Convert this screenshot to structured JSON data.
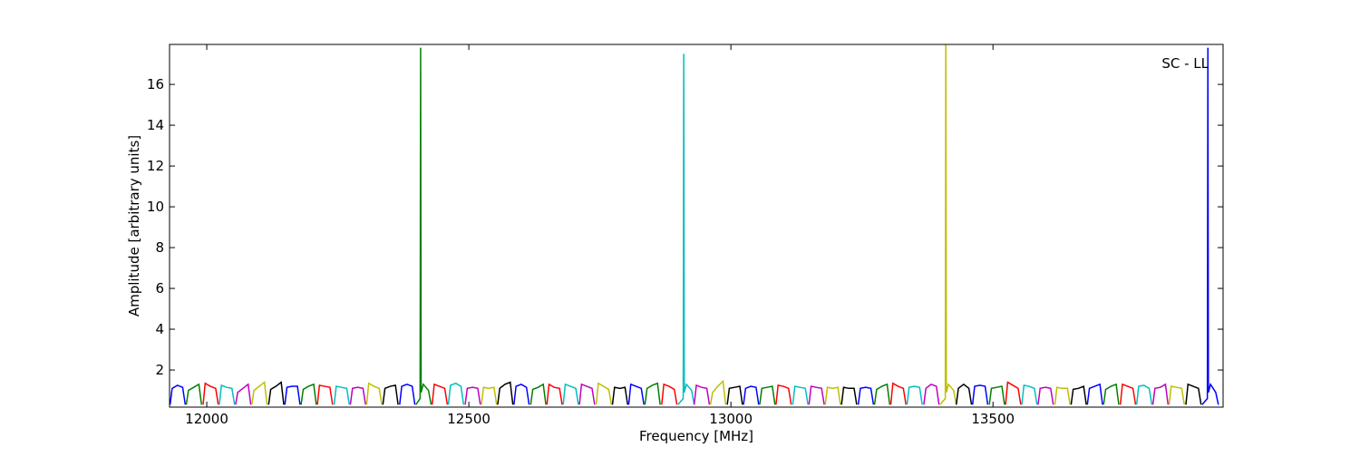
{
  "chart_data": {
    "type": "line",
    "x_label": "Frequency [MHz]",
    "y_label": "Amplitude [arbitrary units]",
    "annotation": "SC - LL",
    "xlim": [
      11929,
      13939
    ],
    "ylim": [
      0.18,
      17.96
    ],
    "xticks": [
      12000,
      12500,
      13000,
      13500
    ],
    "yticks": [
      2,
      4,
      6,
      8,
      10,
      12,
      14,
      16
    ],
    "series": [
      {
        "color": "#0000ff",
        "x": [
          11930,
          11934,
          11944,
          11954,
          11959,
          null,
          12149,
          12153,
          12163,
          12173,
          12178,
          null,
          12368,
          12372,
          12382,
          12392,
          12397,
          null,
          12586,
          12590,
          12600,
          12610,
          12615,
          null,
          12805,
          12809,
          12819,
          12829,
          12834,
          null,
          13024,
          13028,
          13038,
          13048,
          13053,
          null,
          13243,
          13247,
          13257,
          13267,
          13272,
          null,
          13461,
          13465,
          13475,
          13485,
          13490,
          null,
          13680,
          13684,
          13694,
          13704,
          13709,
          null,
          13899,
          13909,
          13910,
          13911,
          13915,
          13925,
          13930
        ],
        "values": [
          0.3,
          1.1,
          1.25,
          1.15,
          0.3,
          null,
          0.3,
          1.15,
          1.2,
          1.2,
          0.3,
          null,
          0.3,
          1.2,
          1.3,
          1.2,
          0.3,
          null,
          0.3,
          1.2,
          1.3,
          1.15,
          0.3,
          null,
          0.3,
          1.3,
          1.2,
          1.1,
          0.3,
          null,
          0.3,
          1.1,
          1.2,
          1.15,
          0.3,
          null,
          0.3,
          1.1,
          1.15,
          1.1,
          0.3,
          null,
          0.3,
          1.2,
          1.25,
          1.2,
          0.3,
          null,
          0.3,
          1.1,
          1.2,
          1.3,
          0.3,
          null,
          0.3,
          0.6,
          17.8,
          0.9,
          1.3,
          0.9,
          0.3
        ]
      },
      {
        "color": "#008000",
        "x": [
          11961,
          11965,
          11975,
          11985,
          11990,
          null,
          12180,
          12184,
          12194,
          12204,
          12209,
          null,
          12399,
          12407,
          12408,
          12409,
          12413,
          12423,
          12428,
          null,
          12618,
          12622,
          12632,
          12642,
          12647,
          null,
          12836,
          12840,
          12850,
          12860,
          12865,
          null,
          13055,
          13059,
          13069,
          13079,
          13084,
          null,
          13274,
          13278,
          13288,
          13298,
          13303,
          null,
          13493,
          13497,
          13507,
          13517,
          13522,
          null,
          13711,
          13715,
          13725,
          13735,
          13740
        ],
        "values": [
          0.3,
          1.0,
          1.15,
          1.3,
          0.3,
          null,
          0.3,
          1.05,
          1.2,
          1.3,
          0.3,
          null,
          0.3,
          0.6,
          17.8,
          0.9,
          1.3,
          1.0,
          0.3,
          null,
          0.3,
          1.05,
          1.15,
          1.3,
          0.3,
          null,
          0.3,
          1.1,
          1.25,
          1.35,
          0.3,
          null,
          0.3,
          1.1,
          1.15,
          1.2,
          0.3,
          null,
          0.3,
          1.05,
          1.2,
          1.3,
          0.3,
          null,
          0.3,
          1.1,
          1.15,
          1.2,
          0.3,
          null,
          0.3,
          1.05,
          1.2,
          1.3,
          0.3
        ]
      },
      {
        "color": "#ff0000",
        "x": [
          11993,
          11997,
          12007,
          12017,
          12022,
          null,
          12211,
          12215,
          12225,
          12235,
          12240,
          null,
          12430,
          12434,
          12444,
          12454,
          12459,
          null,
          12649,
          12653,
          12663,
          12673,
          12678,
          null,
          12868,
          12872,
          12882,
          12892,
          12897,
          null,
          13086,
          13090,
          13100,
          13110,
          13115,
          null,
          13305,
          13309,
          13319,
          13329,
          13334,
          null,
          13524,
          13528,
          13538,
          13548,
          13553,
          null,
          13743,
          13747,
          13757,
          13767,
          13772
        ],
        "values": [
          0.3,
          1.35,
          1.2,
          1.1,
          0.3,
          null,
          0.3,
          1.25,
          1.2,
          1.15,
          0.3,
          null,
          0.3,
          1.3,
          1.2,
          1.1,
          0.3,
          null,
          0.3,
          1.3,
          1.15,
          1.1,
          0.3,
          null,
          0.3,
          1.3,
          1.2,
          1.05,
          0.3,
          null,
          0.3,
          1.25,
          1.2,
          1.1,
          0.3,
          null,
          0.3,
          1.35,
          1.2,
          1.1,
          0.3,
          null,
          0.3,
          1.4,
          1.25,
          1.1,
          0.3,
          null,
          0.3,
          1.3,
          1.2,
          1.1,
          0.3
        ]
      },
      {
        "color": "#00bfbf",
        "x": [
          12024,
          12028,
          12038,
          12048,
          12053,
          null,
          12243,
          12247,
          12257,
          12267,
          12272,
          null,
          12461,
          12465,
          12475,
          12485,
          12490,
          null,
          12680,
          12684,
          12694,
          12704,
          12709,
          null,
          12899,
          12909,
          12910,
          12911,
          12915,
          12925,
          12930,
          null,
          13118,
          13122,
          13132,
          13142,
          13147,
          null,
          13336,
          13340,
          13350,
          13360,
          13365,
          null,
          13555,
          13559,
          13569,
          13579,
          13584,
          null,
          13774,
          13778,
          13788,
          13798,
          13803
        ],
        "values": [
          0.3,
          1.25,
          1.15,
          1.1,
          0.3,
          null,
          0.3,
          1.2,
          1.15,
          1.1,
          0.3,
          null,
          0.3,
          1.25,
          1.35,
          1.2,
          0.3,
          null,
          0.3,
          1.3,
          1.2,
          1.1,
          0.3,
          null,
          0.3,
          0.6,
          17.5,
          0.9,
          1.3,
          1.0,
          0.3,
          null,
          0.3,
          1.2,
          1.15,
          1.1,
          0.3,
          null,
          0.3,
          1.15,
          1.2,
          1.15,
          0.3,
          null,
          0.3,
          1.25,
          1.2,
          1.1,
          0.3,
          null,
          0.3,
          1.2,
          1.25,
          1.1,
          0.3
        ]
      },
      {
        "color": "#bf00bf",
        "x": [
          12055,
          12059,
          12069,
          12079,
          12084,
          null,
          12274,
          12278,
          12288,
          12298,
          12303,
          null,
          12493,
          12497,
          12507,
          12517,
          12522,
          null,
          12711,
          12715,
          12725,
          12735,
          12740,
          null,
          12930,
          12934,
          12944,
          12954,
          12959,
          null,
          13149,
          13153,
          13163,
          13173,
          13178,
          null,
          13368,
          13372,
          13382,
          13392,
          13397,
          null,
          13586,
          13590,
          13600,
          13610,
          13615,
          null,
          13805,
          13809,
          13819,
          13829,
          13834
        ],
        "values": [
          0.3,
          0.9,
          1.1,
          1.3,
          0.3,
          null,
          0.3,
          1.1,
          1.15,
          1.1,
          0.3,
          null,
          0.3,
          1.1,
          1.15,
          1.1,
          0.3,
          null,
          0.3,
          1.3,
          1.2,
          1.1,
          0.3,
          null,
          0.3,
          1.25,
          1.15,
          1.1,
          0.3,
          null,
          0.3,
          1.2,
          1.15,
          1.1,
          0.3,
          null,
          0.3,
          1.1,
          1.3,
          1.2,
          0.3,
          null,
          0.3,
          1.1,
          1.15,
          1.1,
          0.3,
          null,
          0.3,
          1.1,
          1.15,
          1.3,
          0.3
        ]
      },
      {
        "color": "#bfbf00",
        "x": [
          12086,
          12090,
          12100,
          12110,
          12115,
          null,
          12305,
          12309,
          12319,
          12329,
          12334,
          null,
          12524,
          12528,
          12538,
          12548,
          12553,
          null,
          12743,
          12747,
          12757,
          12767,
          12772,
          null,
          12961,
          12965,
          12975,
          12985,
          12990,
          null,
          13180,
          13184,
          13194,
          13204,
          13209,
          null,
          13399,
          13409,
          13410,
          13411,
          13415,
          13425,
          13430,
          null,
          13618,
          13622,
          13632,
          13642,
          13647,
          null,
          13836,
          13840,
          13850,
          13860,
          13865
        ],
        "values": [
          0.3,
          1.0,
          1.2,
          1.4,
          0.3,
          null,
          0.3,
          1.35,
          1.2,
          1.1,
          0.3,
          null,
          0.3,
          1.15,
          1.1,
          1.15,
          0.3,
          null,
          0.3,
          1.35,
          1.2,
          1.05,
          0.3,
          null,
          0.3,
          0.9,
          1.2,
          1.45,
          0.3,
          null,
          0.3,
          1.15,
          1.1,
          1.15,
          0.3,
          null,
          0.3,
          0.6,
          18.2,
          0.9,
          1.3,
          1.0,
          0.3,
          null,
          0.3,
          1.15,
          1.1,
          1.1,
          0.3,
          null,
          0.3,
          1.2,
          1.15,
          1.1,
          0.3
        ]
      },
      {
        "color": "#000000",
        "x": [
          12118,
          12122,
          12132,
          12142,
          12147,
          null,
          12336,
          12340,
          12350,
          12360,
          12365,
          null,
          12555,
          12559,
          12569,
          12579,
          12584,
          null,
          12774,
          12778,
          12788,
          12798,
          12803,
          null,
          12993,
          12997,
          13007,
          13017,
          13022,
          null,
          13211,
          13215,
          13225,
          13235,
          13240,
          null,
          13430,
          13434,
          13444,
          13454,
          13459,
          null,
          13649,
          13653,
          13663,
          13673,
          13678,
          null,
          13868,
          13872,
          13882,
          13892,
          13897
        ],
        "values": [
          0.3,
          1.05,
          1.2,
          1.4,
          0.3,
          null,
          0.3,
          1.1,
          1.2,
          1.25,
          0.3,
          null,
          0.3,
          1.1,
          1.3,
          1.4,
          0.3,
          null,
          0.3,
          1.15,
          1.1,
          1.15,
          0.3,
          null,
          0.3,
          1.1,
          1.15,
          1.2,
          0.3,
          null,
          0.3,
          1.15,
          1.1,
          1.1,
          0.3,
          null,
          0.3,
          1.1,
          1.3,
          1.1,
          0.3,
          null,
          0.3,
          1.05,
          1.1,
          1.2,
          0.3,
          null,
          0.3,
          1.3,
          1.2,
          1.1,
          0.3
        ]
      }
    ]
  }
}
